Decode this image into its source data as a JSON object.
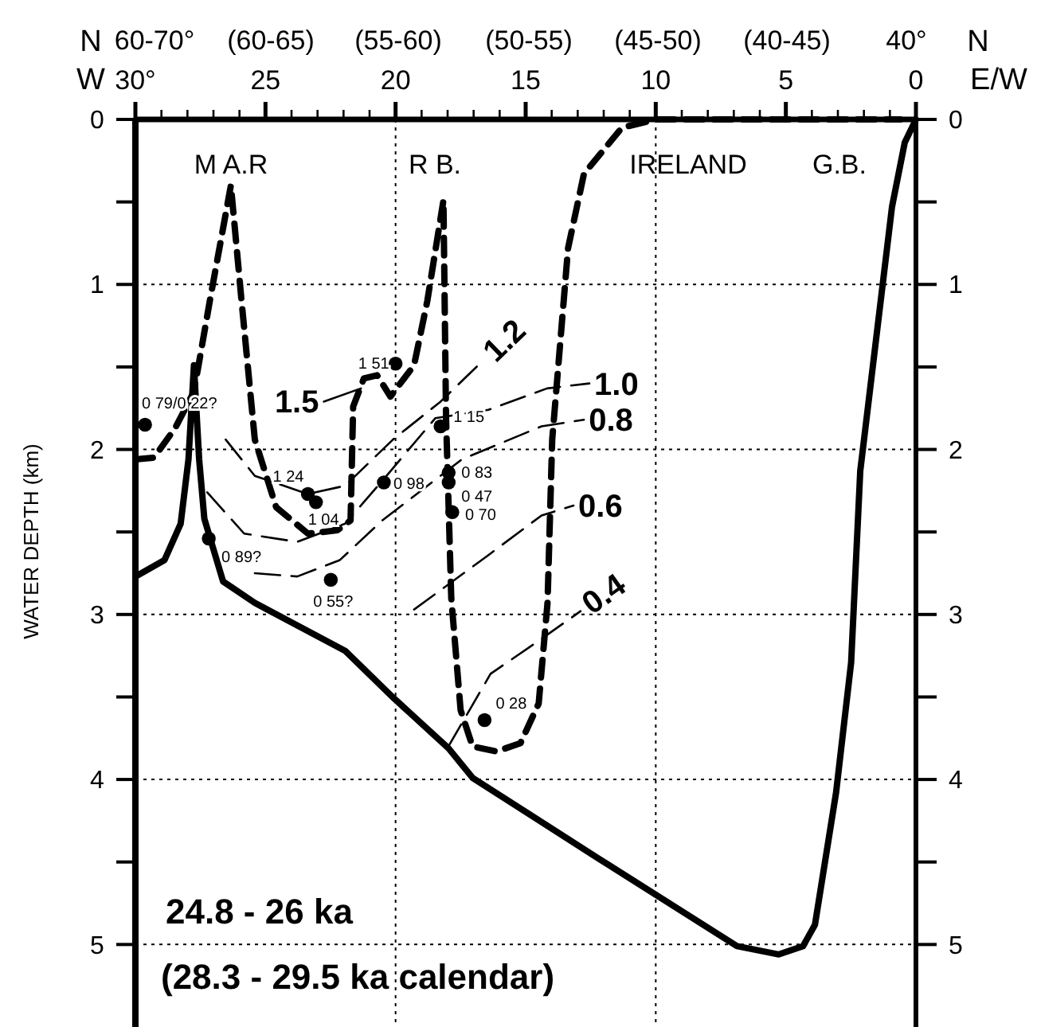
{
  "chart_data": {
    "type": "line",
    "ylabel": "WATER DEPTH (km)",
    "xlim": [
      30,
      0
    ],
    "xticks": [
      {
        "value": 30,
        "label": "30°"
      },
      {
        "value": 29,
        "label": null
      },
      {
        "value": 28,
        "label": null
      },
      {
        "value": 27,
        "label": null
      },
      {
        "value": 26,
        "label": null
      },
      25,
      {
        "value": 24,
        "label": null
      },
      {
        "value": 23,
        "label": null
      },
      {
        "value": 22,
        "label": null
      },
      {
        "value": 21,
        "label": null
      },
      20,
      {
        "value": 19,
        "label": null
      },
      {
        "value": 18,
        "label": null
      },
      {
        "value": 17,
        "label": null
      },
      {
        "value": 16,
        "label": null
      },
      15,
      {
        "value": 14,
        "label": null
      },
      {
        "value": 13,
        "label": null
      },
      {
        "value": 12,
        "label": null
      },
      {
        "value": 11,
        "label": null
      },
      10,
      {
        "value": 9,
        "label": null
      },
      {
        "value": 8,
        "label": null
      },
      {
        "value": 7,
        "label": null
      },
      {
        "value": 6,
        "label": null
      },
      5,
      {
        "value": 4,
        "label": null
      },
      {
        "value": 3,
        "label": null
      },
      {
        "value": 2,
        "label": null
      },
      {
        "value": 1,
        "label": null
      },
      0
    ],
    "ylim": [
      5.5,
      0
    ],
    "yticks": [
      0,
      {
        "value": 0.5,
        "label": null
      },
      1,
      {
        "value": 1.5,
        "label": null
      },
      2,
      {
        "value": 2.5,
        "label": null
      },
      3,
      {
        "value": 3.5,
        "label": null
      },
      4,
      {
        "value": 4.5,
        "label": null
      },
      5
    ],
    "y2lim": [
      5.5,
      0
    ],
    "y2ticks": [
      0,
      {
        "value": 0.5,
        "label": null
      },
      1,
      {
        "value": 1.5,
        "label": null
      },
      2,
      {
        "value": 2.5,
        "label": null
      },
      3,
      {
        "value": 3.5,
        "label": null
      },
      4,
      {
        "value": 4.5,
        "label": null
      },
      5
    ],
    "grid": "y",
    "ref_lines": [
      {
        "axis": "x",
        "value": 20,
        "line_style": "dotted"
      },
      {
        "axis": "x",
        "value": 10,
        "line_style": "dotted"
      }
    ],
    "series": [
      {
        "color": "#000000",
        "line_style": "solid",
        "x": [
          30,
          28.88,
          28.26,
          27.96,
          27.75,
          27.55,
          27.35,
          26.63,
          25.41,
          21.94,
          20.05,
          17.97,
          17.04,
          12.19,
          6.88,
          5.27,
          4.34,
          3.88,
          3.07,
          2.49,
          2.14,
          0.92,
          0.43,
          0
        ],
        "values": [
          2.77,
          2.67,
          2.45,
          2.06,
          1.49,
          2.06,
          2.42,
          2.8,
          2.93,
          3.22,
          3.51,
          3.81,
          3.99,
          4.48,
          5.01,
          5.06,
          5.01,
          4.88,
          4.08,
          3.29,
          2.13,
          0.53,
          0.14,
          0
        ]
      },
      {
        "color": "#000000",
        "line_style": "dashed",
        "x": [
          30,
          29.29,
          28.47,
          27.75,
          27.14,
          26.33,
          25.92,
          25.41,
          24.59,
          23.37,
          22.24,
          21.73,
          21.63,
          21.22,
          20.71,
          20.2,
          19.29,
          18.78,
          18.16,
          18.06,
          17.86,
          17.5,
          17.04,
          16.12,
          15.2,
          14.5,
          14.16,
          13.98,
          13.37,
          12.76,
          11.3,
          10,
          0.6
        ],
        "values": [
          2.06,
          2.05,
          1.87,
          1.65,
          1.1,
          0.4,
          1.1,
          1.94,
          2.35,
          2.51,
          2.49,
          2.43,
          1.74,
          1.57,
          1.55,
          1.68,
          1.49,
          1.1,
          0.49,
          1.81,
          2.9,
          3.58,
          3.8,
          3.83,
          3.78,
          3.54,
          2.93,
          1.94,
          0.78,
          0.33,
          0.05,
          0,
          0
        ]
      },
      {
        "type": "line",
        "name": "1.5",
        "color": "#000000",
        "line_style": "solid",
        "x": [
          21.33,
          22.76
        ],
        "values": [
          1.63,
          1.71
        ]
      },
      {
        "type": "line",
        "name": "1.2",
        "color": "#000000",
        "line_style": "dashed",
        "x": [
          26.53,
          25.41,
          23.37,
          21.94,
          20.1,
          18.27,
          16.63
        ],
        "values": [
          1.94,
          2.16,
          2.27,
          2.22,
          1.94,
          1.71,
          1.46
        ]
      },
      {
        "type": "line",
        "name": "1.0",
        "color": "#000000",
        "line_style": "dashed",
        "x": [
          27.24,
          25.82,
          23.78,
          21.94,
          20.51,
          18.47,
          16.43,
          14.18,
          12.55
        ],
        "values": [
          2.26,
          2.51,
          2.56,
          2.45,
          2.19,
          1.81,
          1.76,
          1.63,
          1.6
        ]
      },
      {
        "type": "line",
        "name": "0.8",
        "color": "#000000",
        "line_style": "dashed",
        "x": [
          25.41,
          23.78,
          22.14,
          20.51,
          17.45,
          14.39,
          12.76
        ],
        "values": [
          2.75,
          2.77,
          2.67,
          2.43,
          2.06,
          1.86,
          1.82
        ]
      },
      {
        "type": "line",
        "name": "0.6",
        "color": "#000000",
        "line_style": "dashed",
        "x": [
          19.29,
          16.43,
          14.39,
          13.16
        ],
        "values": [
          2.97,
          2.64,
          2.4,
          2.34
        ]
      },
      {
        "type": "line",
        "name": "0.4",
        "color": "#000000",
        "line_style": "dashed",
        "x": [
          17.97,
          16.35,
          14.5,
          12.89
        ],
        "values": [
          3.8,
          3.36,
          3.16,
          2.98
        ]
      },
      {
        "type": "scatter",
        "color": "#000000",
        "marker": "circle",
        "x": [
          29.63,
          23.37,
          23.06,
          27.18,
          22.49,
          20.45,
          20.0,
          18.27,
          17.96,
          17.96,
          17.82,
          16.58
        ],
        "values": [
          1.85,
          2.27,
          2.32,
          2.54,
          2.79,
          2.2,
          1.48,
          1.86,
          2.14,
          2.2,
          2.38,
          3.64
        ],
        "value_labels": [
          "0 79/0 22?",
          "1 24",
          "1 04",
          "0 89?",
          "0 55?",
          "0 98",
          "1 51",
          "1 15",
          "0 83",
          "0 47",
          "0 70",
          "0 28"
        ]
      }
    ],
    "annotations": [
      "N",
      "W",
      "N",
      "E/W",
      "24.8 - 26 ka",
      "(28.3 - 29.5 ka calendar)",
      "M A.R",
      "R B.",
      "IRELAND",
      "G.B.",
      "60-70°",
      "(60-65)",
      "(55-60)",
      "(50-55)",
      "(45-50)",
      "(40-45)",
      "40°"
    ]
  }
}
